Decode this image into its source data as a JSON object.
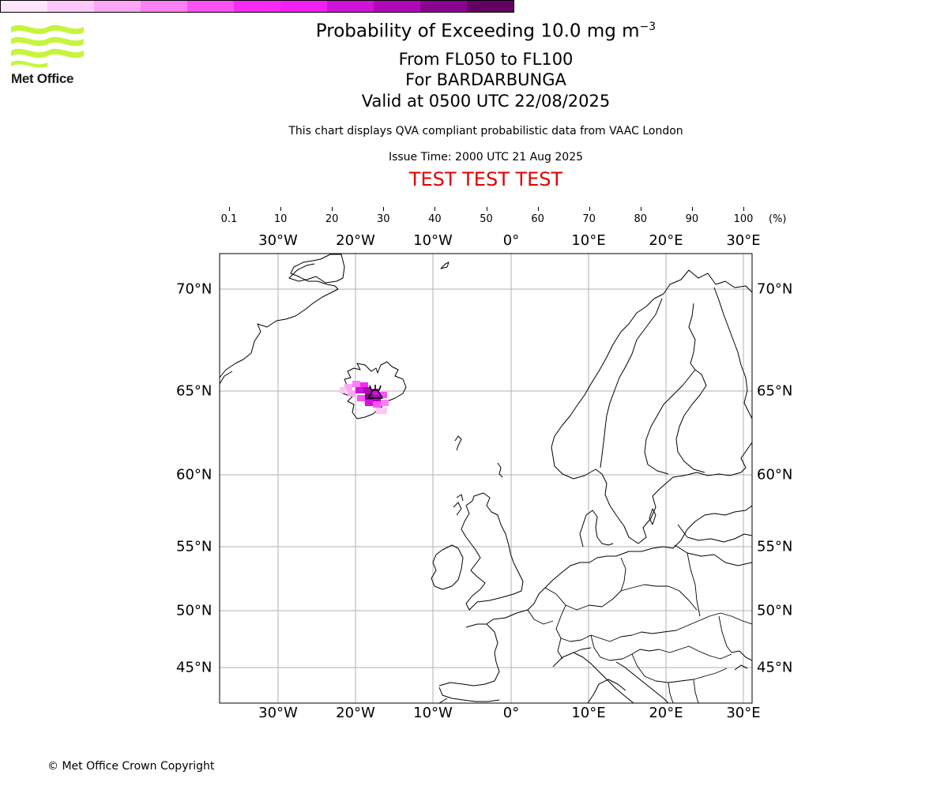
{
  "header": {
    "title_prefix": "Probability of Exceeding 10.0 mg m",
    "title_exponent": "−3",
    "levels": "From FL050 to FL100",
    "volcano": "For BARDARBUNGA",
    "valid": "Valid at 0500 UTC 22/08/2025",
    "disclaimer": "This chart displays QVA compliant probabilistic data from VAAC London",
    "issue_time": "Issue Time: 2000 UTC 21 Aug 2025",
    "test_banner": "TEST TEST TEST"
  },
  "logo": {
    "text": "Met Office",
    "color": "#c6f53b",
    "icon": "met-office-waves"
  },
  "colorbar": {
    "unit": "(%)",
    "ticks": [
      "0.1",
      "10",
      "20",
      "30",
      "40",
      "50",
      "60",
      "70",
      "80",
      "90",
      "100"
    ],
    "colors": [
      "#ffe6fb",
      "#fdc7f7",
      "#fca6f5",
      "#fb80f5",
      "#fb52f6",
      "#f62bf4",
      "#f31ef6",
      "#d013d9",
      "#b008b9",
      "#8b0391",
      "#650063"
    ]
  },
  "map": {
    "lon_labels": [
      "30°W",
      "20°W",
      "10°W",
      "0°",
      "10°E",
      "20°E",
      "30°E"
    ],
    "lat_labels": [
      "70°N",
      "65°N",
      "60°N",
      "55°N",
      "50°N",
      "45°N"
    ],
    "volcano_marker": "volcano-icon",
    "gridline_color": "#b0b0b0"
  },
  "footer": {
    "copyright": "© Met Office Crown Copyright"
  }
}
